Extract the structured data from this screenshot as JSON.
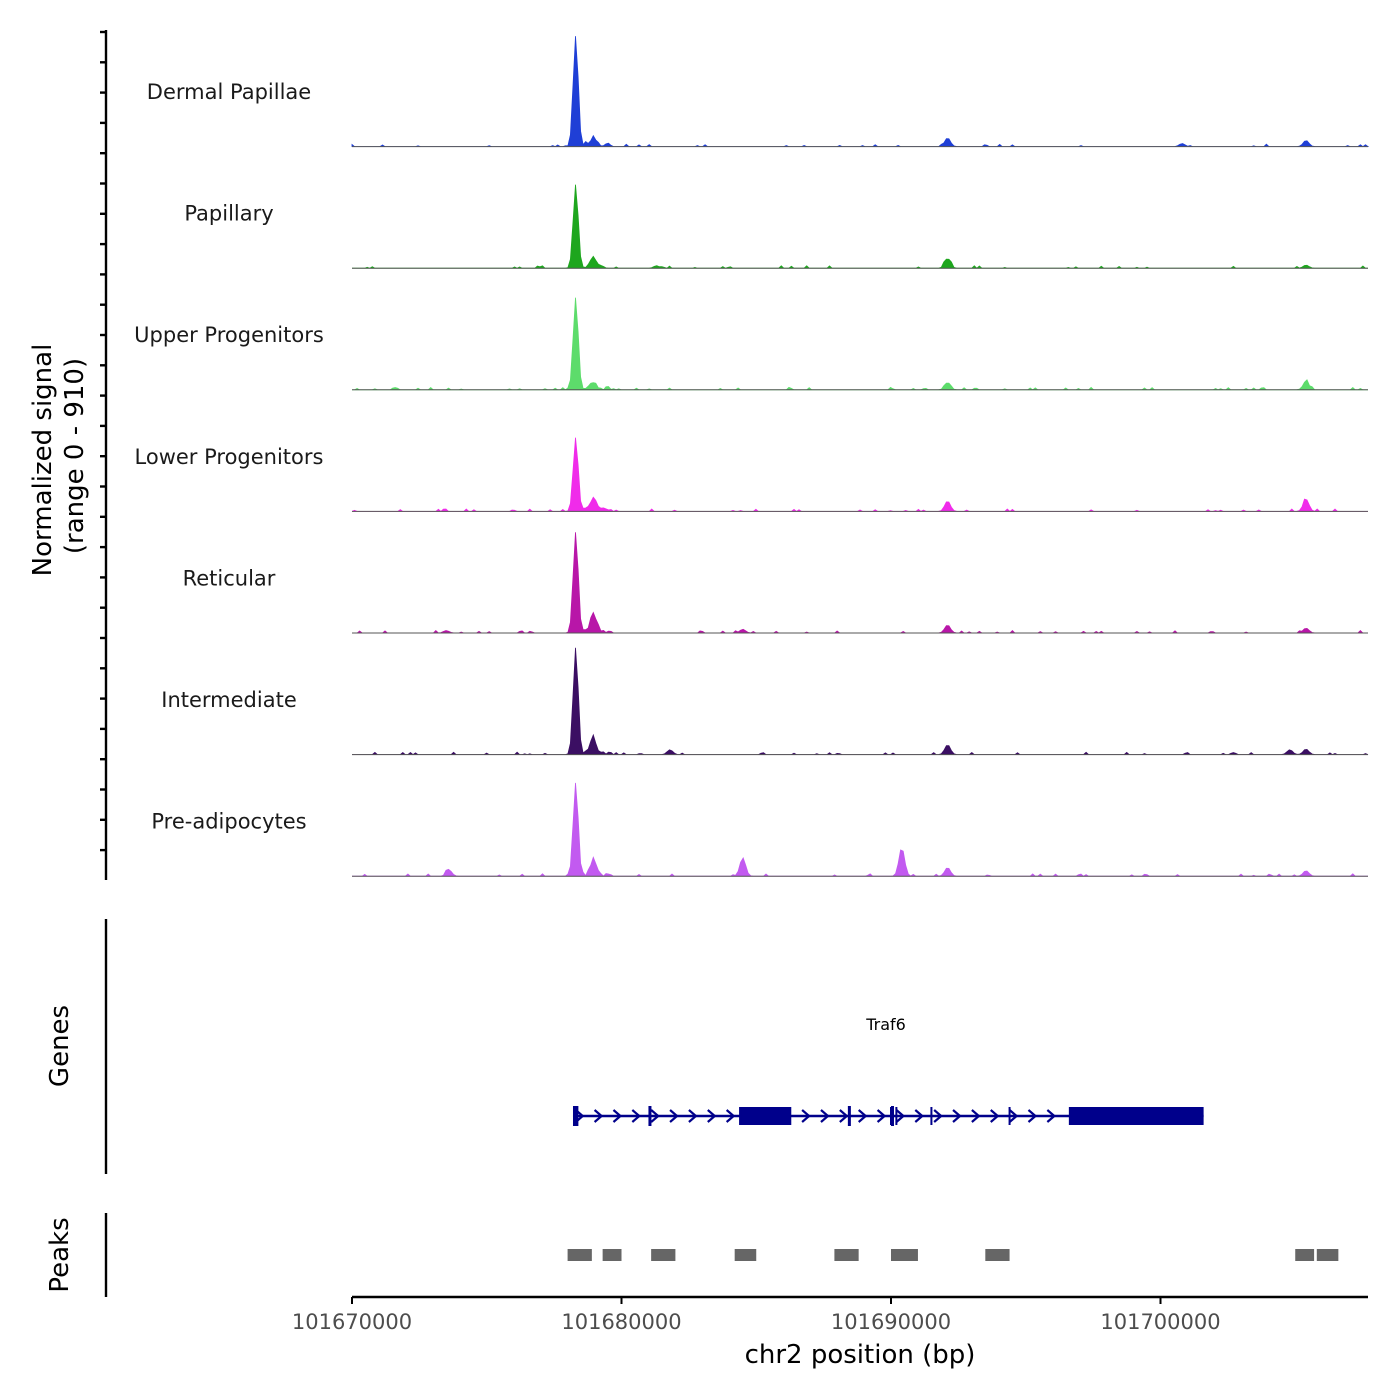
{
  "chart_data": {
    "type": "area",
    "title": "",
    "ylabel": "Normalized signal",
    "ylabel_range": "(range 0 - 910)",
    "ylim": [
      0,
      910
    ],
    "xlabel": "chr2 position (bp)",
    "xlim": [
      101670000,
      101707700
    ],
    "x_ticks": [
      101670000,
      101680000,
      101690000,
      101700000
    ],
    "x_tick_labels": [
      "101670000",
      "101680000",
      "101690000",
      "101700000"
    ],
    "tracks": [
      {
        "name": "Dermal Papillae",
        "color": "#1f3fd6",
        "peaks": [
          [
            101678300,
            900
          ],
          [
            101678950,
            70
          ],
          [
            101692100,
            70
          ],
          [
            101705400,
            50
          ],
          [
            101700800,
            25
          ]
        ]
      },
      {
        "name": "Papillary",
        "color": "#1ea61e",
        "peaks": [
          [
            101678300,
            680
          ],
          [
            101678950,
            80
          ],
          [
            101692100,
            80
          ],
          [
            101705400,
            25
          ],
          [
            101681300,
            20
          ]
        ]
      },
      {
        "name": "Upper Progenitors",
        "color": "#5ddc6b",
        "peaks": [
          [
            101678300,
            750
          ],
          [
            101678950,
            55
          ],
          [
            101692100,
            60
          ],
          [
            101705400,
            70
          ]
        ]
      },
      {
        "name": "Lower Progenitors",
        "color": "#f02bea",
        "peaks": [
          [
            101678300,
            600
          ],
          [
            101678950,
            100
          ],
          [
            101692100,
            85
          ],
          [
            101705400,
            100
          ]
        ]
      },
      {
        "name": "Reticular",
        "color": "#b816a8",
        "peaks": [
          [
            101678300,
            820
          ],
          [
            101678950,
            150
          ],
          [
            101692100,
            65
          ],
          [
            101684500,
            30
          ],
          [
            101705400,
            40
          ],
          [
            101673500,
            20
          ]
        ]
      },
      {
        "name": "Intermediate",
        "color": "#3b0f63",
        "peaks": [
          [
            101678300,
            870
          ],
          [
            101678950,
            130
          ],
          [
            101692100,
            80
          ],
          [
            101681800,
            40
          ],
          [
            101704800,
            40
          ],
          [
            101705400,
            45
          ]
        ]
      },
      {
        "name": "Pre-adipocytes",
        "color": "#c25af0",
        "peaks": [
          [
            101678300,
            760
          ],
          [
            101678950,
            130
          ],
          [
            101684500,
            150
          ],
          [
            101690400,
            230
          ],
          [
            101692100,
            70
          ],
          [
            101673600,
            50
          ],
          [
            101705400,
            45
          ]
        ]
      }
    ],
    "genes_label": "Genes",
    "gene": {
      "name": "Traf6",
      "color": "#00008b",
      "start": 101678200,
      "end": 101701600,
      "strand": "+",
      "exons": [
        [
          101678200,
          101678400
        ],
        [
          101681000,
          101681100
        ],
        [
          101684400,
          101686300
        ],
        [
          101688400,
          101688500
        ],
        [
          101690000,
          101690100
        ],
        [
          101696600,
          101701600
        ]
      ]
    },
    "peaks_label": "Peaks",
    "peaks_color": "#666666",
    "peak_regions": [
      [
        101678000,
        101678900
      ],
      [
        101679300,
        101680000
      ],
      [
        101681100,
        101682000
      ],
      [
        101684200,
        101685000
      ],
      [
        101687900,
        101688800
      ],
      [
        101690000,
        101691000
      ],
      [
        101693500,
        101694400
      ],
      [
        101705000,
        101705700
      ],
      [
        101705800,
        101706600
      ]
    ]
  }
}
